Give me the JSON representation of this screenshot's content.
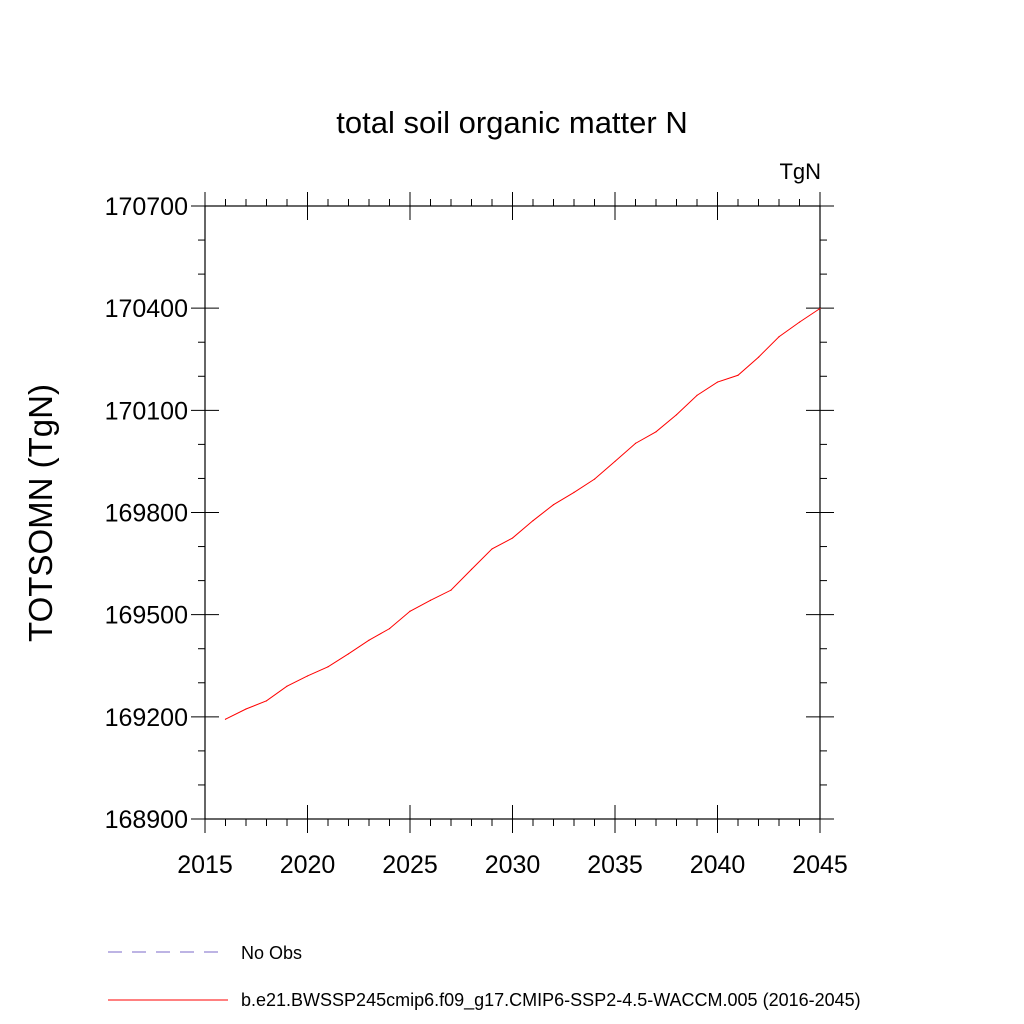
{
  "chart_data": {
    "type": "line",
    "title": "total soil organic matter N",
    "unit_label": "TgN",
    "ylabel": "TOTSOMN  (TgN)",
    "xlabel": "",
    "xlim": [
      2015,
      2045
    ],
    "ylim": [
      168900,
      170700
    ],
    "x_ticks": [
      2015,
      2020,
      2025,
      2030,
      2035,
      2040,
      2045
    ],
    "y_ticks": [
      168900,
      169200,
      169500,
      169800,
      170100,
      170400,
      170700
    ],
    "x_tick_labels": [
      "2015",
      "2020",
      "2025",
      "2030",
      "2035",
      "2040",
      "2045"
    ],
    "y_tick_labels": [
      "168900",
      "169200",
      "169500",
      "169800",
      "170100",
      "170400",
      "170700"
    ],
    "grid": false,
    "legend_position": "bottom",
    "series": [
      {
        "name": "b.e21.BWSSP245cmip6.f09_g17.CMIP6-SSP2-4.5-WACCM.005 (2016-2045)",
        "color": "#ff0000",
        "style": "solid",
        "x": [
          2016,
          2017,
          2018,
          2019,
          2020,
          2021,
          2022,
          2023,
          2024,
          2025,
          2026,
          2027,
          2028,
          2029,
          2030,
          2031,
          2032,
          2033,
          2034,
          2035,
          2036,
          2037,
          2038,
          2039,
          2040,
          2041,
          2042,
          2043,
          2044,
          2045
        ],
        "values": [
          169193,
          169223,
          169247,
          169290,
          169320,
          169347,
          169385,
          169425,
          169459,
          169510,
          169542,
          169572,
          169633,
          169693,
          169725,
          169776,
          169823,
          169859,
          169898,
          169950,
          170003,
          170037,
          170087,
          170144,
          170183,
          170203,
          170256,
          170316,
          170359,
          170399
        ]
      }
    ],
    "legend": [
      {
        "label": "No Obs",
        "color": "#7b68c8",
        "style": "dashed"
      },
      {
        "label": "b.e21.BWSSP245cmip6.f09_g17.CMIP6-SSP2-4.5-WACCM.005 (2016-2045)",
        "color": "#ff0000",
        "style": "solid"
      }
    ]
  }
}
